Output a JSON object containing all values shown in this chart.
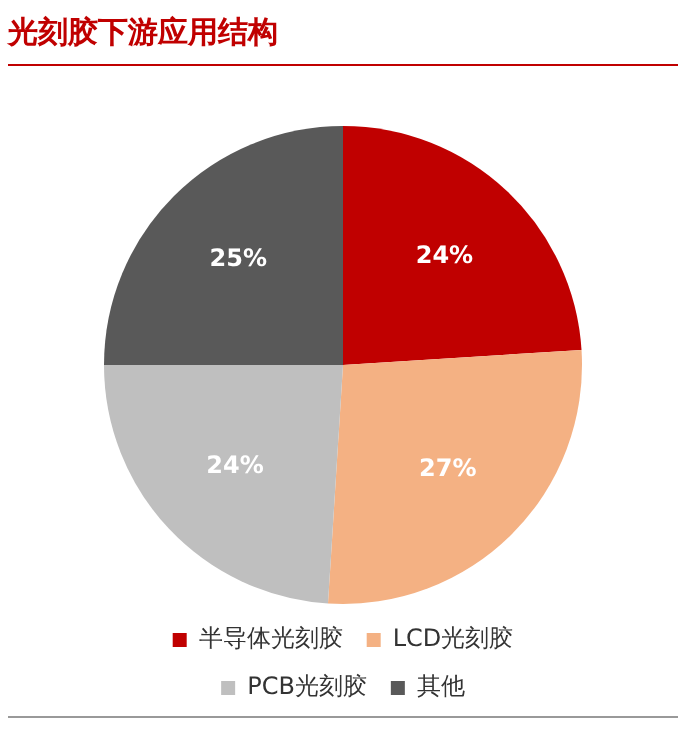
{
  "chart_data": {
    "type": "pie",
    "title": "光刻胶下游应用结构",
    "categories": [
      "半导体光刻胶",
      "LCD光刻胶",
      "PCB光刻胶",
      "其他"
    ],
    "values": [
      24,
      27,
      24,
      25
    ],
    "value_labels": [
      "24%",
      "27%",
      "24%",
      "25%"
    ],
    "colors": [
      "#c00000",
      "#f4b183",
      "#bfbfbf",
      "#595959"
    ],
    "legend": "bottom"
  }
}
